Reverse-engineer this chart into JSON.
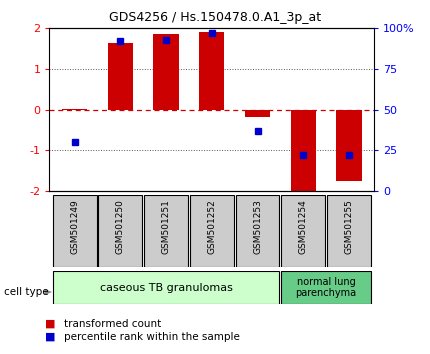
{
  "title": "GDS4256 / Hs.150478.0.A1_3p_at",
  "samples": [
    "GSM501249",
    "GSM501250",
    "GSM501251",
    "GSM501252",
    "GSM501253",
    "GSM501254",
    "GSM501255"
  ],
  "transformed_count": [
    0.02,
    1.65,
    1.85,
    1.92,
    -0.18,
    -2.05,
    -1.75
  ],
  "percentile_rank": [
    30,
    92,
    93,
    97,
    37,
    22,
    22
  ],
  "ylim": [
    -2,
    2
  ],
  "yticks_left": [
    -2,
    -1,
    0,
    1,
    2
  ],
  "yticks_right_vals": [
    0,
    25,
    50,
    75,
    100
  ],
  "yticks_right_labels": [
    "0",
    "25",
    "50",
    "75",
    "100%"
  ],
  "bar_color": "#cc0000",
  "dot_color": "#0000cc",
  "zero_line_color": "#cc0000",
  "dotted_line_color": "#555555",
  "group0_color": "#ccffcc",
  "group1_color": "#66cc88",
  "sample_box_color": "#cccccc",
  "group0_label": "caseous TB granulomas",
  "group1_label": "normal lung\nparenchyma",
  "group0_samples": 5,
  "group1_samples": 2,
  "legend_red_label": "transformed count",
  "legend_blue_label": "percentile rank within the sample",
  "cell_type_label": "cell type"
}
